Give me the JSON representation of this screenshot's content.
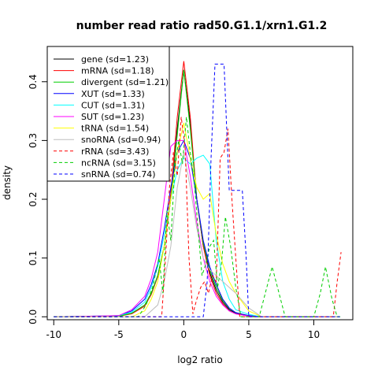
{
  "chart_data": {
    "type": "line",
    "title": "number read ratio rad50.G1.1/xrn1.G1.2",
    "xlabel": "log2 ratio",
    "ylabel": "density",
    "xlim": [
      -10.5,
      13
    ],
    "ylim": [
      -0.005,
      0.46
    ],
    "xticks": [
      -10,
      -5,
      0,
      5,
      10
    ],
    "xtick_labels": [
      "-10",
      "-5",
      "0",
      "5",
      "10"
    ],
    "yticks": [
      0.0,
      0.1,
      0.2,
      0.3,
      0.4
    ],
    "ytick_labels": [
      "0.0",
      "0.1",
      "0.2",
      "0.3",
      "0.4"
    ],
    "grid": false,
    "legend_position": "top-left",
    "series": [
      {
        "name": "gene (sd=1.23)",
        "color": "#000000",
        "dash": "solid",
        "points": [
          [
            -10,
            0
          ],
          [
            -5,
            0.001
          ],
          [
            -4,
            0.006
          ],
          [
            -3,
            0.02
          ],
          [
            -2.5,
            0.04
          ],
          [
            -2,
            0.07
          ],
          [
            -1.5,
            0.12
          ],
          [
            -1,
            0.2
          ],
          [
            -0.5,
            0.32
          ],
          [
            0,
            0.42
          ],
          [
            0.5,
            0.33
          ],
          [
            1,
            0.2
          ],
          [
            1.5,
            0.12
          ],
          [
            2,
            0.075
          ],
          [
            2.5,
            0.045
          ],
          [
            3,
            0.025
          ],
          [
            3.5,
            0.012
          ],
          [
            4,
            0.006
          ],
          [
            5,
            0.002
          ],
          [
            6,
            0
          ],
          [
            12,
            0
          ]
        ]
      },
      {
        "name": "mRNA (sd=1.18)",
        "color": "#ff0000",
        "dash": "solid",
        "points": [
          [
            -10,
            0
          ],
          [
            -5,
            0.001
          ],
          [
            -4,
            0.005
          ],
          [
            -3,
            0.018
          ],
          [
            -2.5,
            0.038
          ],
          [
            -2,
            0.068
          ],
          [
            -1.5,
            0.12
          ],
          [
            -1,
            0.21
          ],
          [
            -0.5,
            0.34
          ],
          [
            0,
            0.435
          ],
          [
            0.5,
            0.34
          ],
          [
            1,
            0.2
          ],
          [
            1.5,
            0.12
          ],
          [
            2,
            0.07
          ],
          [
            2.5,
            0.04
          ],
          [
            3,
            0.022
          ],
          [
            3.5,
            0.01
          ],
          [
            4,
            0.005
          ],
          [
            5,
            0.001
          ],
          [
            6,
            0
          ],
          [
            12,
            0
          ]
        ]
      },
      {
        "name": "divergent (sd=1.21)",
        "color": "#00cd00",
        "dash": "solid",
        "points": [
          [
            -10,
            0
          ],
          [
            -5,
            0.001
          ],
          [
            -4,
            0.006
          ],
          [
            -3,
            0.02
          ],
          [
            -2.5,
            0.04
          ],
          [
            -2,
            0.07
          ],
          [
            -1.5,
            0.12
          ],
          [
            -1,
            0.2
          ],
          [
            -0.5,
            0.31
          ],
          [
            0,
            0.42
          ],
          [
            0.5,
            0.32
          ],
          [
            1,
            0.2
          ],
          [
            1.5,
            0.125
          ],
          [
            2,
            0.08
          ],
          [
            2.5,
            0.05
          ],
          [
            3,
            0.028
          ],
          [
            3.5,
            0.014
          ],
          [
            4,
            0.007
          ],
          [
            5,
            0.002
          ],
          [
            6,
            0
          ],
          [
            12,
            0
          ]
        ]
      },
      {
        "name": "XUT (sd=1.33)",
        "color": "#0000ff",
        "dash": "solid",
        "points": [
          [
            -10,
            0
          ],
          [
            -5,
            0.002
          ],
          [
            -4,
            0.01
          ],
          [
            -3,
            0.03
          ],
          [
            -2.5,
            0.055
          ],
          [
            -2,
            0.09
          ],
          [
            -1.5,
            0.15
          ],
          [
            -1,
            0.22
          ],
          [
            -0.5,
            0.28
          ],
          [
            0,
            0.3
          ],
          [
            0.5,
            0.27
          ],
          [
            1,
            0.2
          ],
          [
            1.5,
            0.13
          ],
          [
            2,
            0.085
          ],
          [
            2.5,
            0.055
          ],
          [
            3,
            0.03
          ],
          [
            3.5,
            0.015
          ],
          [
            4,
            0.007
          ],
          [
            5,
            0.002
          ],
          [
            6,
            0
          ],
          [
            12,
            0
          ]
        ]
      },
      {
        "name": "CUT (sd=1.31)",
        "color": "#00ffff",
        "dash": "solid",
        "points": [
          [
            -10,
            0
          ],
          [
            -5,
            0.002
          ],
          [
            -4,
            0.008
          ],
          [
            -3,
            0.025
          ],
          [
            -2.5,
            0.05
          ],
          [
            -2,
            0.085
          ],
          [
            -1.5,
            0.14
          ],
          [
            -1,
            0.2
          ],
          [
            -0.5,
            0.25
          ],
          [
            0,
            0.27
          ],
          [
            0.5,
            0.26
          ],
          [
            1,
            0.27
          ],
          [
            1.5,
            0.275
          ],
          [
            2,
            0.26
          ],
          [
            2.5,
            0.13
          ],
          [
            3,
            0.06
          ],
          [
            3.5,
            0.03
          ],
          [
            4,
            0.012
          ],
          [
            5,
            0.004
          ],
          [
            6,
            0
          ],
          [
            12,
            0
          ]
        ]
      },
      {
        "name": "SUT (sd=1.23)",
        "color": "#ff00ff",
        "dash": "solid",
        "points": [
          [
            -10,
            0
          ],
          [
            -5,
            0.002
          ],
          [
            -4,
            0.012
          ],
          [
            -3,
            0.035
          ],
          [
            -2.5,
            0.065
          ],
          [
            -2,
            0.11
          ],
          [
            -1.5,
            0.2
          ],
          [
            -1,
            0.29
          ],
          [
            -0.5,
            0.3
          ],
          [
            0,
            0.3
          ],
          [
            0.5,
            0.24
          ],
          [
            1,
            0.16
          ],
          [
            1.5,
            0.1
          ],
          [
            2,
            0.06
          ],
          [
            2.5,
            0.035
          ],
          [
            3,
            0.02
          ],
          [
            3.5,
            0.01
          ],
          [
            4,
            0.005
          ],
          [
            5,
            0.001
          ],
          [
            6,
            0
          ],
          [
            12,
            0
          ]
        ]
      },
      {
        "name": "tRNA (sd=1.54)",
        "color": "#ffff00",
        "dash": "solid",
        "points": [
          [
            -10,
            0
          ],
          [
            -4,
            0
          ],
          [
            -3,
            0.01
          ],
          [
            -2.5,
            0.03
          ],
          [
            -2,
            0.06
          ],
          [
            -1.5,
            0.12
          ],
          [
            -1,
            0.2
          ],
          [
            -0.5,
            0.28
          ],
          [
            0,
            0.33
          ],
          [
            0.5,
            0.27
          ],
          [
            1,
            0.22
          ],
          [
            1.5,
            0.2
          ],
          [
            2,
            0.21
          ],
          [
            2.5,
            0.14
          ],
          [
            3,
            0.09
          ],
          [
            3.5,
            0.06
          ],
          [
            4,
            0.04
          ],
          [
            5,
            0.01
          ],
          [
            6,
            0
          ],
          [
            12,
            0
          ]
        ]
      },
      {
        "name": "snoRNA (sd=0.94)",
        "color": "#bebebe",
        "dash": "solid",
        "points": [
          [
            -10,
            0
          ],
          [
            -3,
            0
          ],
          [
            -2,
            0.02
          ],
          [
            -1.5,
            0.06
          ],
          [
            -1,
            0.12
          ],
          [
            -0.5,
            0.22
          ],
          [
            0,
            0.28
          ],
          [
            0.5,
            0.22
          ],
          [
            1,
            0.15
          ],
          [
            1.5,
            0.1
          ],
          [
            2,
            0.08
          ],
          [
            2.5,
            0.07
          ],
          [
            3,
            0.06
          ],
          [
            3.5,
            0.05
          ],
          [
            4,
            0.04
          ],
          [
            5,
            0.015
          ],
          [
            6,
            0
          ],
          [
            12,
            0
          ]
        ]
      },
      {
        "name": "rRNA (sd=3.43)",
        "color": "#ff0000",
        "dash": "dashed",
        "points": [
          [
            -10,
            0
          ],
          [
            -1.7,
            0
          ],
          [
            -1.4,
            0.1
          ],
          [
            -1.1,
            0.22
          ],
          [
            -0.8,
            0.28
          ],
          [
            -0.5,
            0.24
          ],
          [
            -0.2,
            0.34
          ],
          [
            0.1,
            0.29
          ],
          [
            0.4,
            0.1
          ],
          [
            0.7,
            0.005
          ],
          [
            1,
            0.03
          ],
          [
            1.3,
            0.05
          ],
          [
            1.6,
            0.06
          ],
          [
            1.9,
            0.04
          ],
          [
            2.2,
            0.07
          ],
          [
            2.5,
            0.06
          ],
          [
            2.8,
            0.27
          ],
          [
            3.1,
            0.28
          ],
          [
            3.4,
            0.32
          ],
          [
            3.7,
            0.2
          ],
          [
            4,
            0.1
          ],
          [
            4.3,
            0
          ],
          [
            11.5,
            0
          ],
          [
            11.8,
            0.06
          ],
          [
            12.1,
            0.11
          ]
        ]
      },
      {
        "name": "ncRNA (sd=3.15)",
        "color": "#00cd00",
        "dash": "dashed",
        "points": [
          [
            -10,
            0
          ],
          [
            -3.5,
            0
          ],
          [
            -2.9,
            0.02
          ],
          [
            -2.4,
            0.05
          ],
          [
            -1.9,
            0.1
          ],
          [
            -1.6,
            0.04
          ],
          [
            -1.3,
            0.18
          ],
          [
            -1,
            0.13
          ],
          [
            -0.7,
            0.25
          ],
          [
            -0.4,
            0.3
          ],
          [
            -0.1,
            0.26
          ],
          [
            0.2,
            0.34
          ],
          [
            0.5,
            0.28
          ],
          [
            0.8,
            0.23
          ],
          [
            1.1,
            0.15
          ],
          [
            1.4,
            0.07
          ],
          [
            1.7,
            0.09
          ],
          [
            2,
            0.12
          ],
          [
            2.3,
            0.13
          ],
          [
            2.6,
            0.05
          ],
          [
            2.9,
            0.09
          ],
          [
            3.2,
            0.17
          ],
          [
            3.6,
            0.12
          ],
          [
            4,
            0.05
          ],
          [
            4.4,
            0
          ],
          [
            5.8,
            0
          ],
          [
            6.8,
            0.085
          ],
          [
            7.8,
            0
          ],
          [
            10,
            0
          ],
          [
            10.5,
            0.04
          ],
          [
            10.9,
            0.085
          ],
          [
            11.4,
            0.03
          ],
          [
            11.8,
            0
          ],
          [
            12.2,
            0
          ]
        ]
      },
      {
        "name": "snRNA (sd=0.74)",
        "color": "#0000ff",
        "dash": "dashed",
        "points": [
          [
            -10,
            0
          ],
          [
            1.5,
            0
          ],
          [
            1.8,
            0.06
          ],
          [
            2.1,
            0.27
          ],
          [
            2.4,
            0.43
          ],
          [
            3.1,
            0.43
          ],
          [
            3.5,
            0.215
          ],
          [
            4.5,
            0.215
          ],
          [
            4.8,
            0.1
          ],
          [
            5,
            0
          ],
          [
            12,
            0
          ]
        ]
      }
    ]
  }
}
